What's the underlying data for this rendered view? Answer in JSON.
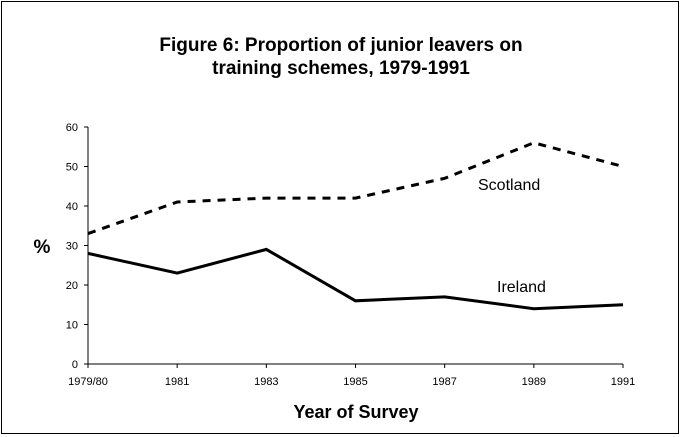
{
  "chart_data": {
    "type": "line",
    "title_line1": "Figure 6: Proportion of junior leavers on",
    "title_line2": "training schemes, 1979-1991",
    "xlabel": "Year of Survey",
    "ylabel": "%",
    "categories": [
      "1979/80",
      "1981",
      "1983",
      "1985",
      "1987",
      "1989",
      "1991"
    ],
    "ylim": [
      0,
      60
    ],
    "yticks": [
      0,
      10,
      20,
      30,
      40,
      50,
      60
    ],
    "grid": false,
    "legend": "none",
    "series": [
      {
        "name": "Scotland",
        "values": [
          33,
          41,
          42,
          42,
          47,
          56,
          50
        ],
        "style": "dashed",
        "color": "#000000"
      },
      {
        "name": "Ireland",
        "values": [
          28,
          23,
          29,
          16,
          17,
          14,
          15
        ],
        "style": "solid",
        "color": "#000000"
      }
    ]
  }
}
